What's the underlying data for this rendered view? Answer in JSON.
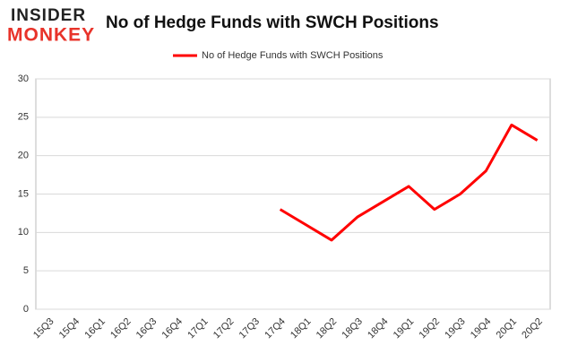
{
  "logo": [
    "INSIDER",
    "MONKEY"
  ],
  "chart_data": {
    "type": "line",
    "title": "No of Hedge Funds with SWCH Positions",
    "categories": [
      "15Q3",
      "15Q4",
      "16Q1",
      "16Q2",
      "16Q3",
      "16Q4",
      "17Q1",
      "17Q2",
      "17Q3",
      "17Q4",
      "18Q1",
      "18Q2",
      "18Q3",
      "18Q4",
      "19Q1",
      "19Q2",
      "19Q3",
      "19Q4",
      "20Q1",
      "20Q2"
    ],
    "series": [
      {
        "name": "No of Hedge Funds with SWCH Positions",
        "color": "#ff0000",
        "values": [
          null,
          null,
          null,
          null,
          null,
          null,
          null,
          null,
          null,
          13,
          11,
          9,
          12,
          14,
          16,
          13,
          15,
          18,
          24,
          22
        ]
      }
    ],
    "ylim": [
      0,
      30
    ],
    "yticks": [
      0,
      5,
      10,
      15,
      20,
      25,
      30
    ],
    "grid": true,
    "legend": "top"
  }
}
